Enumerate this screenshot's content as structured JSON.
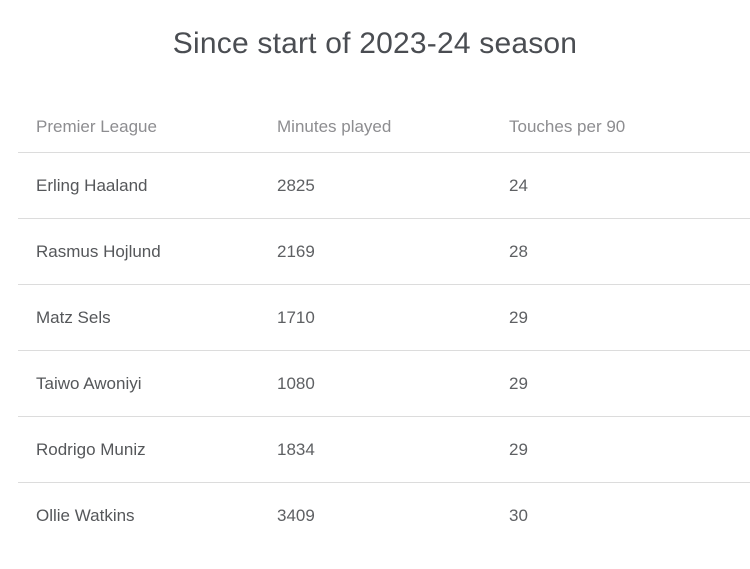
{
  "title": "Since start of 2023-24 season",
  "chart_data": {
    "type": "table",
    "title": "Since start of 2023-24 season",
    "columns": [
      "Premier League",
      "Minutes played",
      "Touches per 90"
    ],
    "rows": [
      [
        "Erling Haaland",
        2825,
        24
      ],
      [
        "Rasmus Hojlund",
        2169,
        28
      ],
      [
        "Matz Sels",
        1710,
        29
      ],
      [
        "Taiwo Awoniyi",
        1080,
        29
      ],
      [
        "Rodrigo Muniz",
        1834,
        29
      ],
      [
        "Ollie Watkins",
        3409,
        30
      ]
    ],
    "layout": {
      "grid": "horizontal-dividers-only",
      "header_style": "gray-muted",
      "alignment": "left"
    }
  },
  "colors": {
    "background": "#ffffff",
    "title_text": "#4a4d52",
    "header_text": "#8d8d90",
    "cell_text": "#55575a",
    "divider": "#dcdcdc"
  }
}
